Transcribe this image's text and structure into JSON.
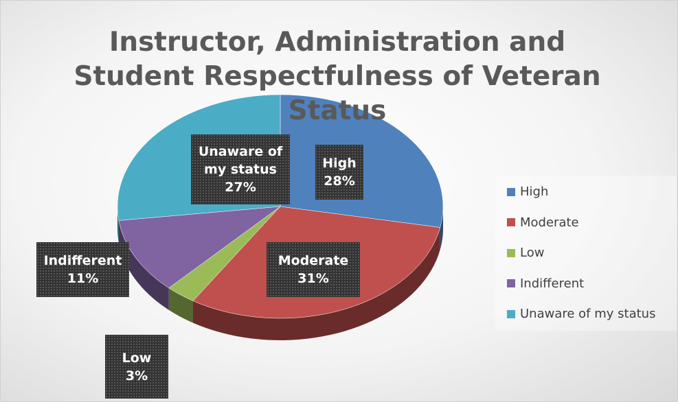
{
  "chart_data": {
    "type": "pie",
    "title": "Instructor, Administration and Student Respectfulness of Veteran Status",
    "categories": [
      "High",
      "Moderate",
      "Low",
      "Indifferent",
      "Unaware of my status"
    ],
    "values": [
      28,
      31,
      3,
      11,
      27
    ],
    "value_labels": [
      "28%",
      "31%",
      "3%",
      "11%",
      "27%"
    ],
    "colors": [
      "#4f81bd",
      "#c0504d",
      "#9bbb59",
      "#8064a2",
      "#4bacc6"
    ],
    "legend": "right"
  }
}
